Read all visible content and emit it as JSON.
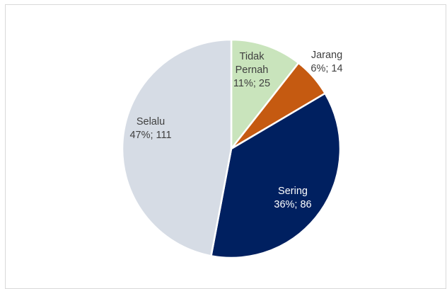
{
  "chart_data": {
    "type": "pie",
    "title": "",
    "slices": [
      {
        "label_lines": [
          "Tidak",
          "Pernah"
        ],
        "value_text": "11%; 25",
        "percent": 11,
        "count": 25,
        "color": "#c9e4bc"
      },
      {
        "label_lines": [
          "Jarang"
        ],
        "value_text": "6%; 14",
        "percent": 6,
        "count": 14,
        "color": "#c55a11"
      },
      {
        "label_lines": [
          "Sering"
        ],
        "value_text": "36%; 86",
        "percent": 36,
        "count": 86,
        "color": "#002060"
      },
      {
        "label_lines": [
          "Selalu"
        ],
        "value_text": "47%; 111",
        "percent": 47,
        "count": 111,
        "color": "#d6dce5"
      }
    ],
    "label_colors": [
      "#404040",
      "#404040",
      "#ffffff",
      "#404040"
    ]
  }
}
